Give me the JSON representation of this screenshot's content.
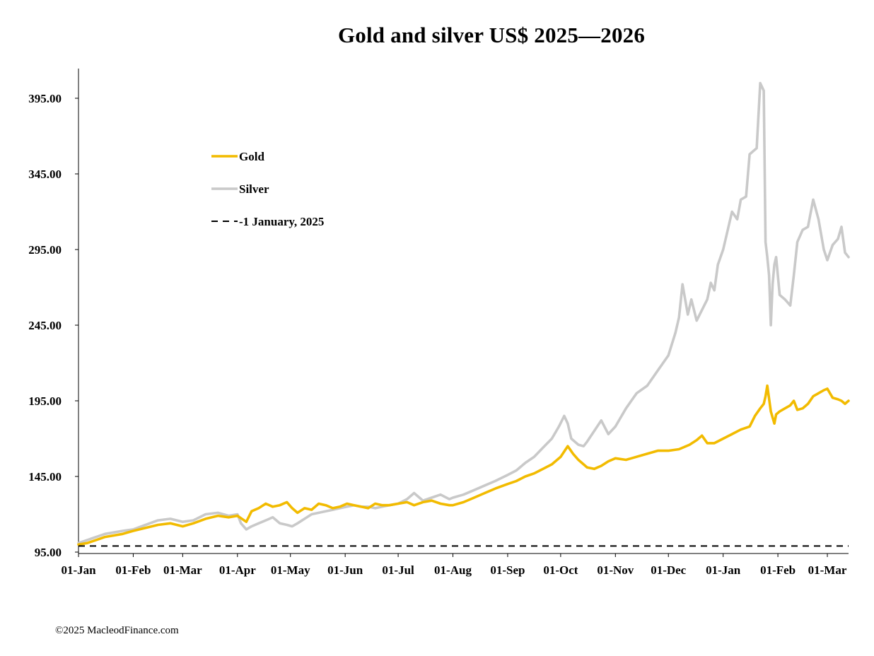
{
  "chart_data": {
    "type": "line",
    "title": "Gold and silver  US$ 2025—2026",
    "xlabel": "",
    "ylabel": "",
    "ylim": [
      95,
      410
    ],
    "yticks": [
      95,
      145,
      195,
      245,
      295,
      345,
      395
    ],
    "ytick_labels": [
      "95.00",
      "145.00",
      "195.00",
      "245.00",
      "295.00",
      "345.00",
      "395.00"
    ],
    "xlim": [
      0,
      436
    ],
    "xticks": [
      0,
      31,
      59,
      90,
      120,
      151,
      181,
      212,
      243,
      273,
      304,
      334,
      365,
      396,
      424
    ],
    "xtick_labels": [
      "01-Jan",
      "01-Feb",
      "01-Mar",
      "01-Apr",
      "01-May",
      "01-Jun",
      "01-Jul",
      "01-Aug",
      "01-Sep",
      "01-Oct",
      "01-Nov",
      "01-Dec",
      "01-Jan",
      "01-Feb",
      "01-Mar"
    ],
    "legend_position": "upper-left",
    "series": [
      {
        "name": "Gold",
        "color": "#f2bb00",
        "style": "solid",
        "x": [
          0,
          5,
          10,
          15,
          20,
          25,
          31,
          38,
          45,
          52,
          59,
          65,
          72,
          79,
          85,
          90,
          95,
          98,
          102,
          106,
          110,
          114,
          118,
          121,
          124,
          128,
          132,
          136,
          140,
          144,
          148,
          152,
          156,
          160,
          164,
          168,
          172,
          176,
          181,
          186,
          190,
          195,
          200,
          205,
          210,
          212,
          218,
          224,
          230,
          236,
          243,
          248,
          253,
          258,
          263,
          268,
          273,
          277,
          280,
          283,
          286,
          288,
          292,
          296,
          300,
          304,
          310,
          316,
          322,
          328,
          334,
          340,
          346,
          350,
          353,
          356,
          360,
          365,
          370,
          375,
          380,
          383,
          386,
          388,
          389,
          390,
          392,
          394,
          395,
          397,
          400,
          403,
          405,
          407,
          410,
          413,
          416,
          419,
          422,
          424,
          427,
          430,
          432,
          434,
          436
        ],
        "values": [
          100,
          101,
          103,
          105,
          106,
          107,
          109,
          111,
          113,
          114,
          112,
          114,
          117,
          119,
          118,
          119,
          115,
          122,
          124,
          127,
          125,
          126,
          128,
          124,
          121,
          124,
          123,
          127,
          126,
          124,
          125,
          127,
          126,
          125,
          124,
          127,
          126,
          126,
          127,
          128,
          126,
          128,
          129,
          127,
          126,
          126,
          128,
          131,
          134,
          137,
          140,
          142,
          145,
          147,
          150,
          153,
          158,
          165,
          160,
          156,
          153,
          151,
          150,
          152,
          155,
          157,
          156,
          158,
          160,
          162,
          162,
          163,
          166,
          169,
          172,
          167,
          167,
          170,
          173,
          176,
          178,
          185,
          190,
          193,
          198,
          205,
          188,
          180,
          186,
          188,
          190,
          192,
          195,
          189,
          190,
          193,
          198,
          200,
          202,
          203,
          197,
          196,
          195,
          193,
          195
        ]
      },
      {
        "name": "Silver",
        "color": "#c9c9c9",
        "style": "solid",
        "x": [
          0,
          5,
          10,
          15,
          20,
          25,
          31,
          38,
          45,
          52,
          59,
          65,
          72,
          79,
          85,
          90,
          92,
          95,
          98,
          102,
          106,
          110,
          114,
          118,
          121,
          124,
          128,
          132,
          136,
          140,
          144,
          148,
          152,
          156,
          160,
          164,
          168,
          172,
          176,
          181,
          186,
          190,
          195,
          200,
          205,
          210,
          212,
          218,
          224,
          230,
          236,
          243,
          248,
          253,
          258,
          263,
          268,
          272,
          275,
          277,
          279,
          283,
          286,
          288,
          292,
          296,
          300,
          304,
          310,
          316,
          322,
          328,
          334,
          338,
          340,
          342,
          345,
          347,
          350,
          353,
          356,
          358,
          360,
          362,
          365,
          370,
          373,
          375,
          378,
          380,
          382,
          384,
          386,
          388,
          389,
          390,
          391,
          392,
          393,
          394,
          395,
          397,
          400,
          403,
          405,
          407,
          410,
          413,
          416,
          419,
          422,
          424,
          427,
          430,
          432,
          434,
          436
        ],
        "values": [
          101,
          103,
          105,
          107,
          108,
          109,
          110,
          113,
          116,
          117,
          115,
          116,
          120,
          121,
          119,
          120,
          114,
          110,
          112,
          114,
          116,
          118,
          114,
          113,
          112,
          114,
          117,
          120,
          121,
          122,
          123,
          124,
          125,
          126,
          125,
          125,
          124,
          125,
          126,
          127,
          130,
          134,
          129,
          131,
          133,
          130,
          131,
          133,
          136,
          139,
          142,
          146,
          149,
          154,
          158,
          164,
          170,
          178,
          185,
          180,
          170,
          166,
          165,
          168,
          175,
          182,
          173,
          178,
          190,
          200,
          205,
          215,
          225,
          240,
          250,
          272,
          252,
          262,
          248,
          255,
          262,
          273,
          268,
          285,
          295,
          320,
          315,
          328,
          330,
          358,
          360,
          362,
          405,
          400,
          300,
          290,
          278,
          245,
          272,
          285,
          290,
          265,
          262,
          258,
          278,
          300,
          308,
          310,
          328,
          315,
          295,
          288,
          298,
          302,
          310,
          293,
          290
        ]
      },
      {
        "name": "-1 January, 2025",
        "color": "#000000",
        "style": "dashed",
        "x": [
          0,
          436
        ],
        "values": [
          99,
          99
        ]
      }
    ]
  },
  "footer": {
    "credit": "©2025 MacleodFinance.com"
  }
}
